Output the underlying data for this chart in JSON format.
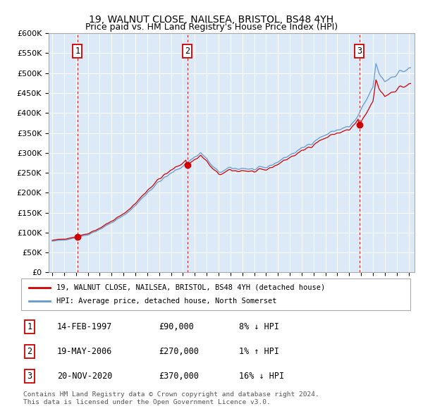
{
  "title1": "19, WALNUT CLOSE, NAILSEA, BRISTOL, BS48 4YH",
  "title2": "Price paid vs. HM Land Registry's House Price Index (HPI)",
  "background_color": "#dce9f7",
  "ylim": [
    0,
    600000
  ],
  "yticks": [
    0,
    50000,
    100000,
    150000,
    200000,
    250000,
    300000,
    350000,
    400000,
    450000,
    500000,
    550000,
    600000
  ],
  "ytick_labels": [
    "£0",
    "£50K",
    "£100K",
    "£150K",
    "£200K",
    "£250K",
    "£300K",
    "£350K",
    "£400K",
    "£450K",
    "£500K",
    "£550K",
    "£600K"
  ],
  "xlim_start": 1994.7,
  "xlim_end": 2025.5,
  "xticks": [
    1995,
    1996,
    1997,
    1998,
    1999,
    2000,
    2001,
    2002,
    2003,
    2004,
    2005,
    2006,
    2007,
    2008,
    2009,
    2010,
    2011,
    2012,
    2013,
    2014,
    2015,
    2016,
    2017,
    2018,
    2019,
    2020,
    2021,
    2022,
    2023,
    2024,
    2025
  ],
  "house_color": "#cc0000",
  "hpi_color": "#6699cc",
  "vline_color": "#cc0000",
  "purchases": [
    {
      "num": 1,
      "year": 1997.12,
      "price": 90000
    },
    {
      "num": 2,
      "year": 2006.37,
      "price": 270000
    },
    {
      "num": 3,
      "year": 2020.87,
      "price": 370000
    }
  ],
  "legend_house": "19, WALNUT CLOSE, NAILSEA, BRISTOL, BS48 4YH (detached house)",
  "legend_hpi": "HPI: Average price, detached house, North Somerset",
  "table": [
    {
      "num": "1",
      "date": "14-FEB-1997",
      "price": "£90,000",
      "hpi": "8% ↓ HPI"
    },
    {
      "num": "2",
      "date": "19-MAY-2006",
      "price": "£270,000",
      "hpi": "1% ↑ HPI"
    },
    {
      "num": "3",
      "date": "20-NOV-2020",
      "price": "£370,000",
      "hpi": "16% ↓ HPI"
    }
  ],
  "footnote1": "Contains HM Land Registry data © Crown copyright and database right 2024.",
  "footnote2": "This data is licensed under the Open Government Licence v3.0."
}
